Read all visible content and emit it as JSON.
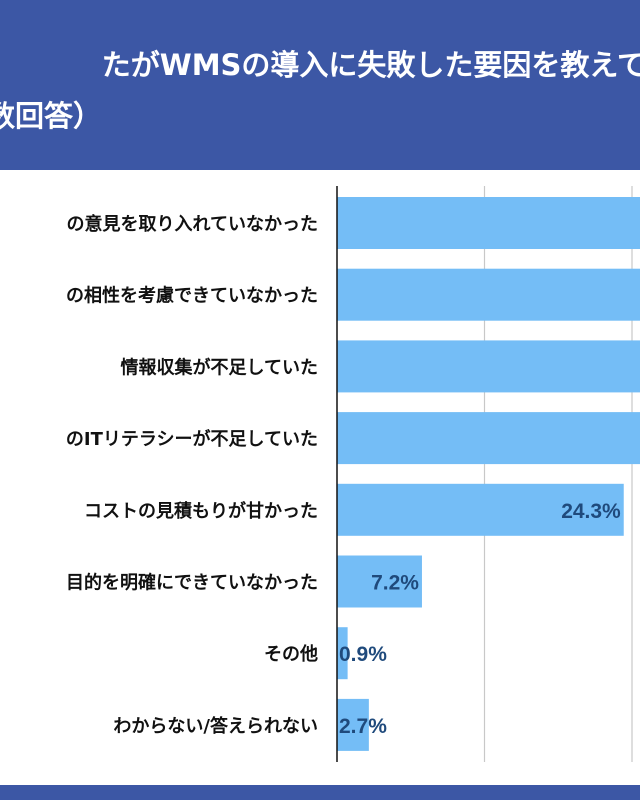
{
  "title": {
    "line1": "たがWMSの導入に失敗した要因を教えて",
    "line2": "数回答）"
  },
  "colors": {
    "header": "#3c57a5",
    "bar": "#74bdf6",
    "value_text": "#1f4a7c",
    "grid": "#c8c8c8"
  },
  "chart_data": {
    "type": "bar",
    "orientation": "horizontal",
    "categories": [
      "の意見を取り入れていなかった",
      "の相性を考慮できていなかった",
      "情報収集が不足していた",
      "のITリテラシーが不足していた",
      "コストの見積もりが甘かった",
      "目的を明確にできていなかった",
      "その他",
      "わからない/答えられない"
    ],
    "values": [
      null,
      null,
      null,
      null,
      24.3,
      7.2,
      0.9,
      2.7
    ],
    "value_labels": [
      "",
      "",
      "",
      "",
      "24.3%",
      "7.2%",
      "0.9%",
      "2.7%"
    ],
    "note": "first four bars extend past the visible edge; values not shown",
    "xlim": [
      0,
      25.7
    ],
    "gridlines": [
      12.5,
      25
    ],
    "grid": true
  }
}
